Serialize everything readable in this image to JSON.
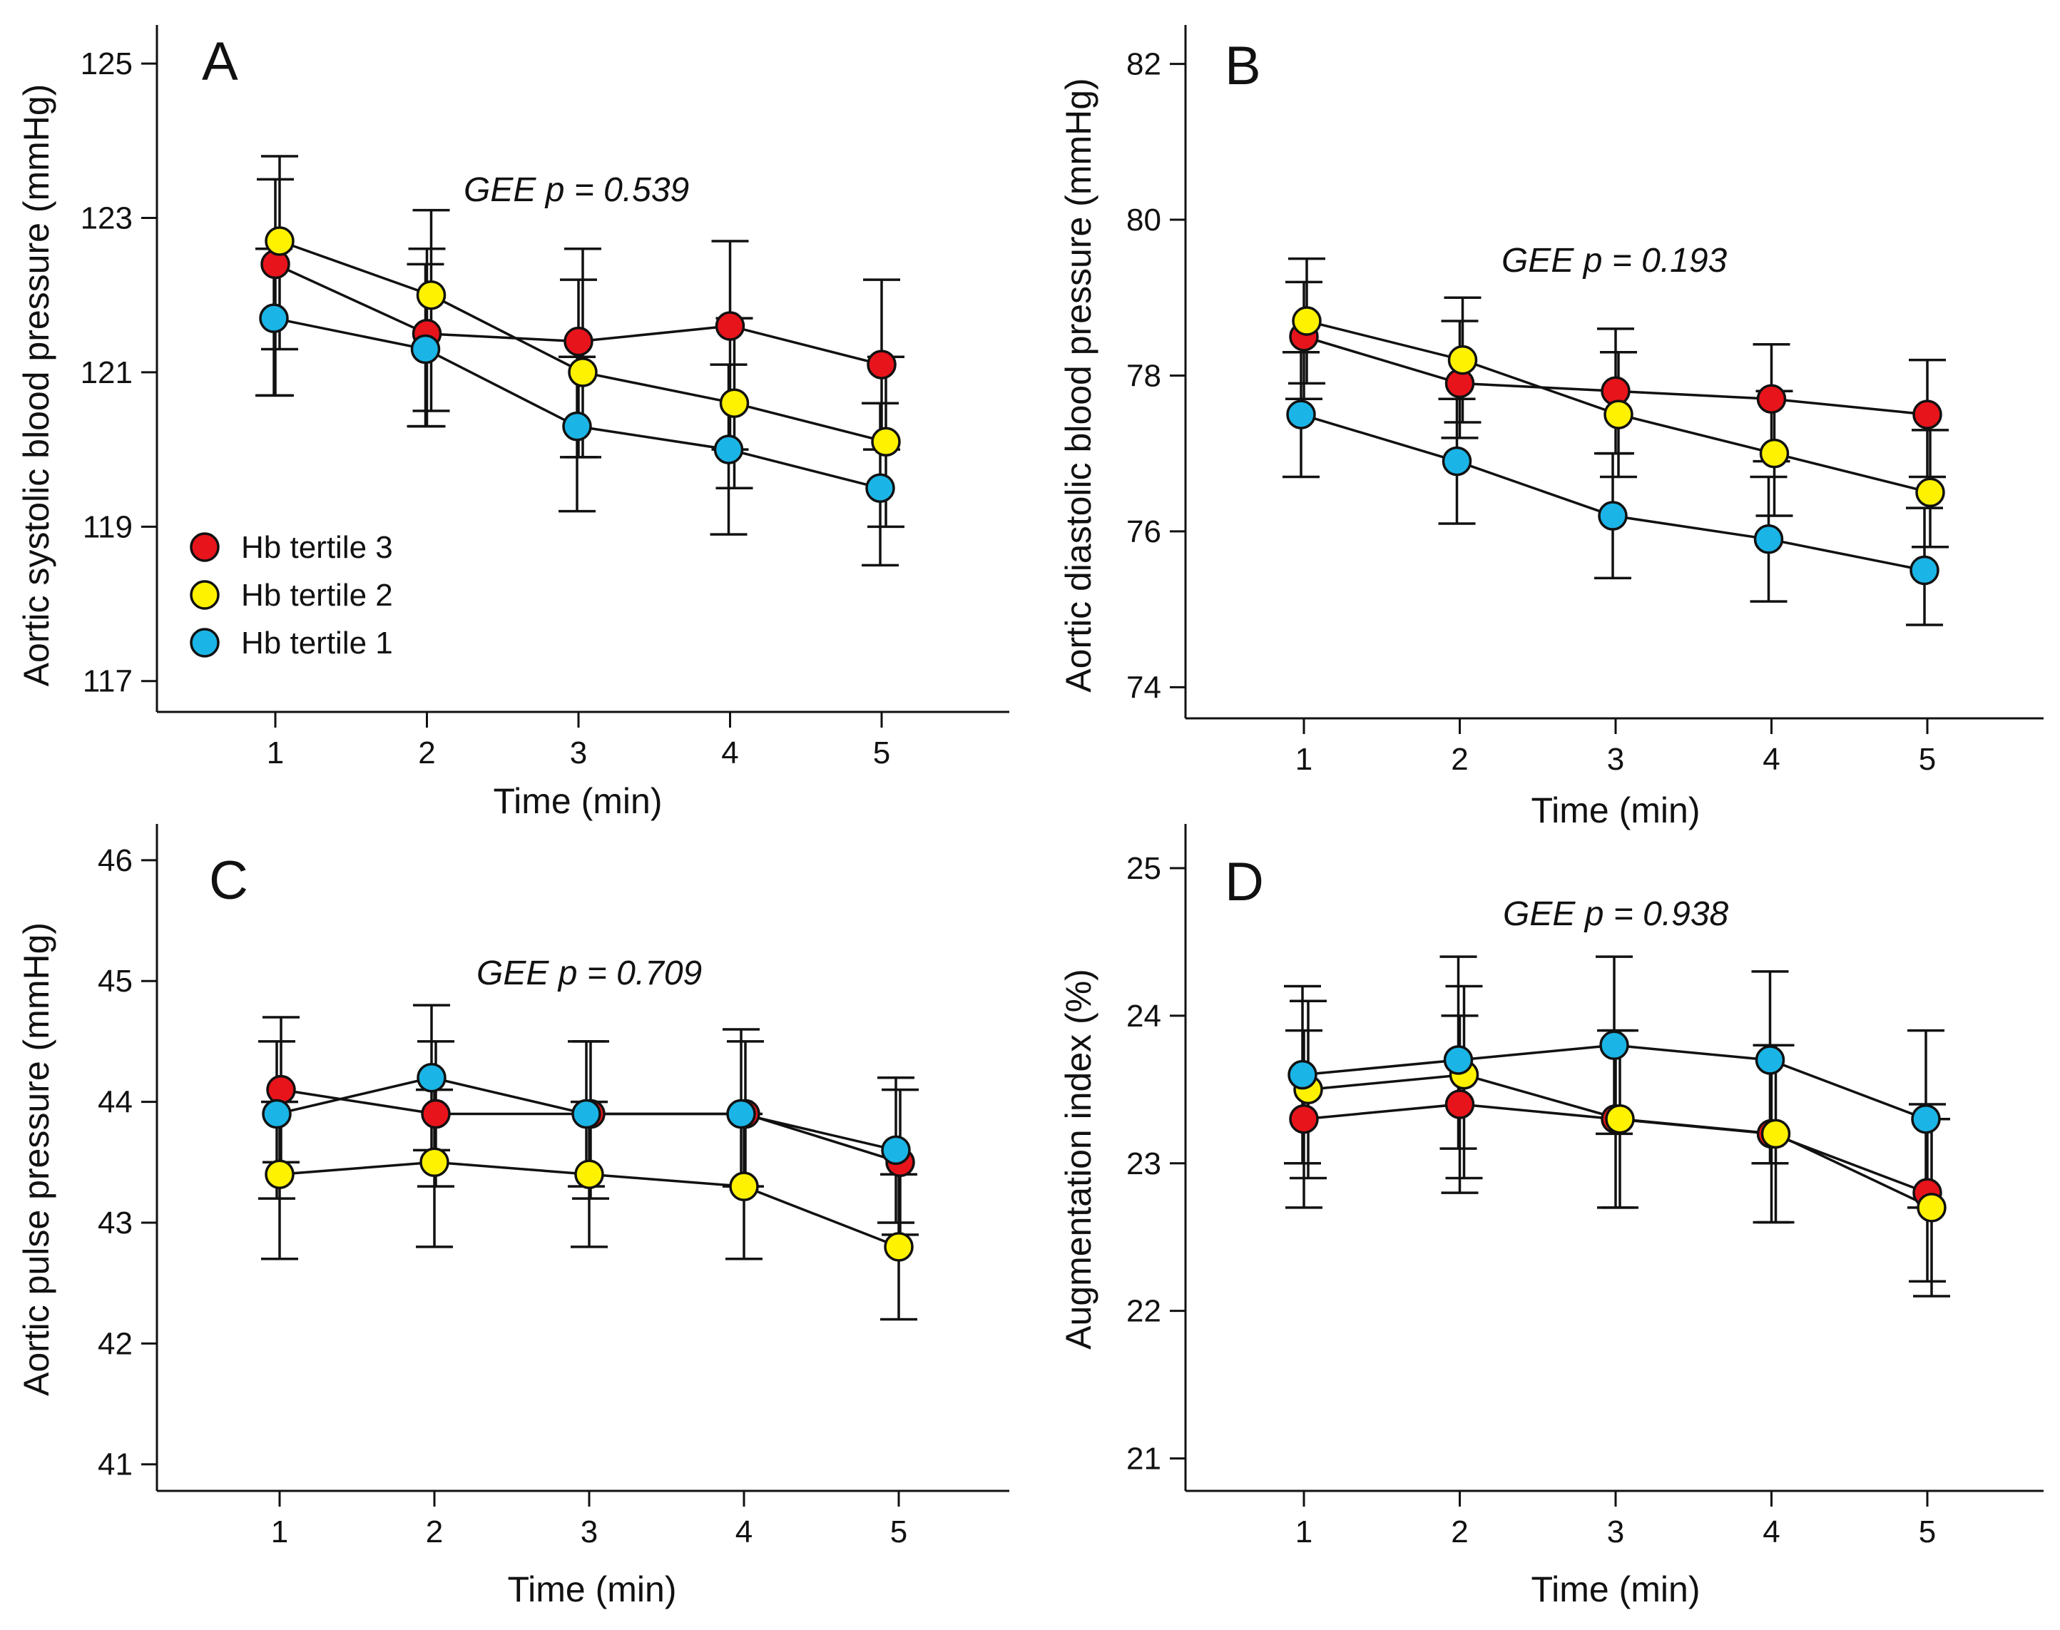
{
  "legend": {
    "series_colors": [
      "#e8141b",
      "#fff200",
      "#1bb4e6"
    ]
  },
  "chart_data": [
    {
      "type": "line",
      "panel": "A",
      "title": "",
      "xlabel": "Time (min)",
      "ylabel": "Aortic systolic blood pressure (mmHg)",
      "annotation": "GEE p = 0.539",
      "categories": [
        1,
        2,
        3,
        4,
        5
      ],
      "x_ticks": [
        "1",
        "2",
        "3",
        "4",
        "5"
      ],
      "ylim": [
        116.6,
        125.5
      ],
      "y_ticks": [
        117,
        119,
        121,
        123,
        125
      ],
      "y_tick_labels": [
        "117",
        "119",
        "121",
        "123",
        "125"
      ],
      "series": [
        {
          "name": "Hb tertile 3",
          "color": "#e8141b",
          "values": [
            122.4,
            121.5,
            121.4,
            121.6,
            121.1
          ],
          "err_low": [
            120.7,
            120.3,
            119.9,
            120.0,
            120.0
          ],
          "err_high": [
            123.5,
            122.6,
            122.2,
            122.7,
            122.2
          ]
        },
        {
          "name": "Hb tertile 2",
          "color": "#fff200",
          "values": [
            122.7,
            122.0,
            121.0,
            120.6,
            120.1
          ],
          "err_low": [
            121.3,
            120.5,
            119.9,
            119.5,
            119.0
          ],
          "err_high": [
            123.8,
            123.1,
            122.6,
            121.7,
            121.2
          ]
        },
        {
          "name": "Hb tertile 1",
          "color": "#1bb4e6",
          "values": [
            121.7,
            121.3,
            120.3,
            120.0,
            119.5
          ],
          "err_low": [
            120.7,
            120.3,
            119.2,
            118.9,
            118.5
          ],
          "err_high": [
            122.6,
            122.4,
            121.2,
            121.1,
            120.6
          ]
        }
      ],
      "legend_entries": [
        "Hb tertile 3",
        "Hb tertile 2",
        "Hb tertile 1"
      ],
      "legend_position": "bottom-left"
    },
    {
      "type": "line",
      "panel": "B",
      "title": "",
      "xlabel": "Time (min)",
      "ylabel": "Aortic diastolic blood pressure (mmHg)",
      "annotation": "GEE p = 0.193",
      "categories": [
        1,
        2,
        3,
        4,
        5
      ],
      "x_ticks": [
        "1",
        "2",
        "3",
        "4",
        "5"
      ],
      "ylim": [
        73.6,
        82.5
      ],
      "y_ticks": [
        74,
        76,
        78,
        80,
        82
      ],
      "y_tick_labels": [
        "74",
        "76",
        "78",
        "80",
        "82"
      ],
      "series": [
        {
          "name": "Hb tertile 3",
          "color": "#e8141b",
          "values": [
            78.5,
            77.9,
            77.8,
            77.7,
            77.5
          ],
          "err_low": [
            77.7,
            77.2,
            77.0,
            76.9,
            76.7
          ],
          "err_high": [
            79.2,
            78.7,
            78.6,
            78.4,
            78.2
          ]
        },
        {
          "name": "Hb tertile 2",
          "color": "#fff200",
          "values": [
            78.7,
            78.2,
            77.5,
            77.0,
            76.5
          ],
          "err_low": [
            77.9,
            77.4,
            76.7,
            76.2,
            75.8
          ],
          "err_high": [
            79.5,
            79.0,
            78.3,
            77.8,
            77.3
          ]
        },
        {
          "name": "Hb tertile 1",
          "color": "#1bb4e6",
          "values": [
            77.5,
            76.9,
            76.2,
            75.9,
            75.5
          ],
          "err_low": [
            76.7,
            76.1,
            75.4,
            75.1,
            74.8
          ],
          "err_high": [
            78.3,
            77.7,
            77.0,
            76.7,
            76.3
          ]
        }
      ]
    },
    {
      "type": "line",
      "panel": "C",
      "title": "",
      "xlabel": "Time (min)",
      "ylabel": "Aortic pulse pressure (mmHg)",
      "annotation": "GEE p = 0.709",
      "categories": [
        1,
        2,
        3,
        4,
        5
      ],
      "x_ticks": [
        "1",
        "2",
        "3",
        "4",
        "5"
      ],
      "ylim": [
        40.78,
        46.3
      ],
      "y_ticks": [
        41,
        42,
        43,
        44,
        45,
        46
      ],
      "y_tick_labels": [
        "41",
        "42",
        "43",
        "44",
        "45",
        "46"
      ],
      "series": [
        {
          "name": "Hb tertile 3",
          "color": "#e8141b",
          "values": [
            44.1,
            43.9,
            43.9,
            43.9,
            43.5
          ],
          "err_low": [
            43.5,
            43.3,
            43.2,
            43.3,
            42.9
          ],
          "err_high": [
            44.7,
            44.5,
            44.5,
            44.5,
            44.1
          ]
        },
        {
          "name": "Hb tertile 2",
          "color": "#fff200",
          "values": [
            43.4,
            43.5,
            43.4,
            43.3,
            42.8
          ],
          "err_low": [
            42.7,
            42.8,
            42.8,
            42.7,
            42.2
          ],
          "err_high": [
            44.0,
            44.1,
            44.0,
            43.9,
            43.4
          ]
        },
        {
          "name": "Hb tertile 1",
          "color": "#1bb4e6",
          "values": [
            43.9,
            44.2,
            43.9,
            43.9,
            43.6
          ],
          "err_low": [
            43.2,
            43.6,
            43.3,
            43.3,
            43.0
          ],
          "err_high": [
            44.5,
            44.8,
            44.5,
            44.6,
            44.2
          ]
        }
      ]
    },
    {
      "type": "line",
      "panel": "D",
      "title": "",
      "xlabel": "Time (min)",
      "ylabel": "Augmentation index (%)",
      "annotation": "GEE p = 0.938",
      "categories": [
        1,
        2,
        3,
        4,
        5
      ],
      "x_ticks": [
        "1",
        "2",
        "3",
        "4",
        "5"
      ],
      "ylim": [
        20.78,
        25.3
      ],
      "y_ticks": [
        21,
        22,
        23,
        24,
        25
      ],
      "y_tick_labels": [
        "21",
        "22",
        "23",
        "24",
        "25"
      ],
      "series": [
        {
          "name": "Hb tertile 3",
          "color": "#e8141b",
          "values": [
            23.3,
            23.4,
            23.3,
            23.2,
            22.8
          ],
          "err_low": [
            22.7,
            22.8,
            22.7,
            22.6,
            22.2
          ],
          "err_high": [
            23.9,
            24.0,
            23.9,
            23.8,
            23.4
          ]
        },
        {
          "name": "Hb tertile 2",
          "color": "#fff200",
          "values": [
            23.5,
            23.6,
            23.3,
            23.2,
            22.7
          ],
          "err_low": [
            22.9,
            22.9,
            22.7,
            22.6,
            22.1
          ],
          "err_high": [
            24.1,
            24.2,
            23.9,
            23.8,
            23.3
          ]
        },
        {
          "name": "Hb tertile 1",
          "color": "#1bb4e6",
          "values": [
            23.6,
            23.7,
            23.8,
            23.7,
            23.3
          ],
          "err_low": [
            23.0,
            23.1,
            23.2,
            23.0,
            22.7
          ],
          "err_high": [
            24.2,
            24.4,
            24.4,
            24.3,
            23.9
          ]
        }
      ]
    }
  ]
}
